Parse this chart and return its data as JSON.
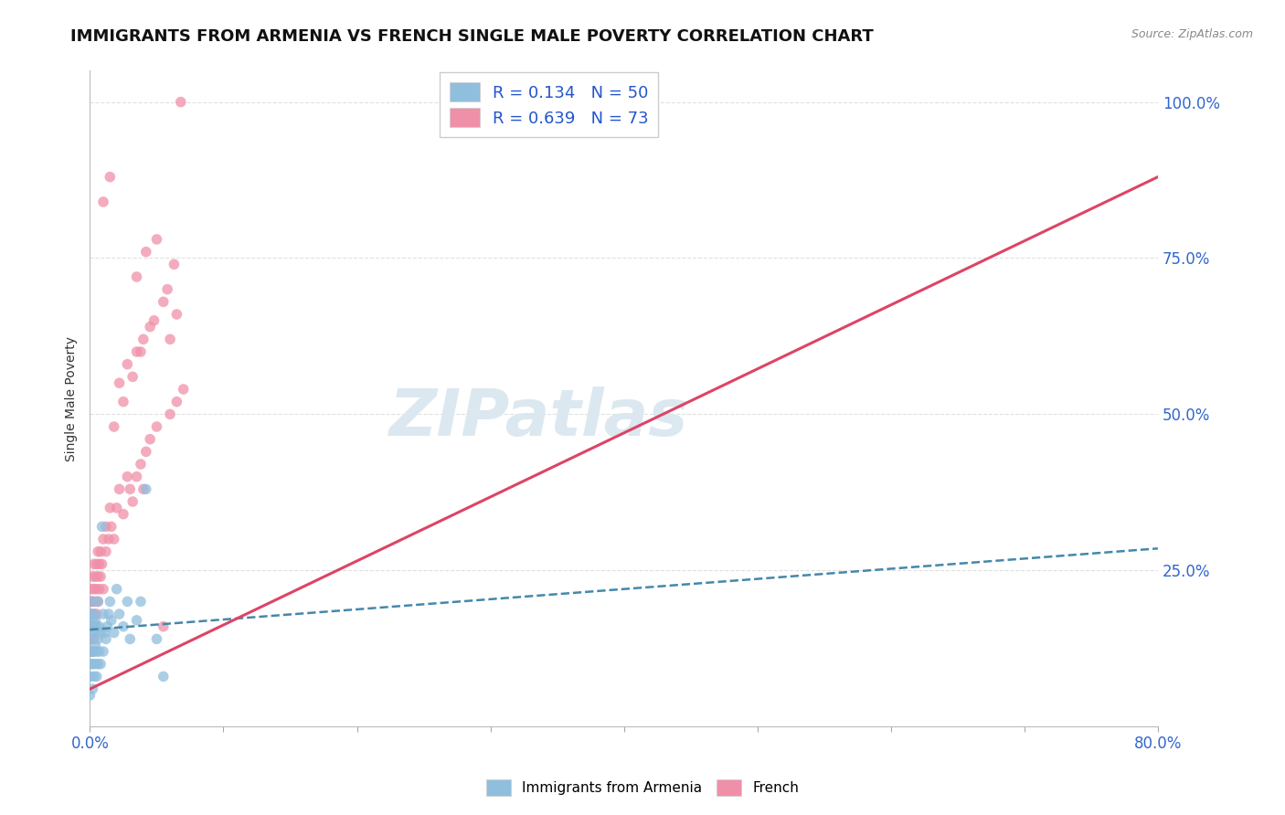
{
  "title": "IMMIGRANTS FROM ARMENIA VS FRENCH SINGLE MALE POVERTY CORRELATION CHART",
  "source": "Source: ZipAtlas.com",
  "ylabel": "Single Male Poverty",
  "legend_entries": [
    {
      "label": "R = 0.134   N = 50",
      "color": "#a8c8e8"
    },
    {
      "label": "R = 0.639   N = 73",
      "color": "#f4a8b8"
    }
  ],
  "blue_scatter_x": [
    0.0,
    0.0,
    0.001,
    0.001,
    0.001,
    0.001,
    0.001,
    0.002,
    0.002,
    0.002,
    0.002,
    0.002,
    0.002,
    0.003,
    0.003,
    0.003,
    0.003,
    0.004,
    0.004,
    0.004,
    0.005,
    0.005,
    0.005,
    0.006,
    0.006,
    0.006,
    0.007,
    0.007,
    0.008,
    0.008,
    0.009,
    0.01,
    0.01,
    0.011,
    0.012,
    0.013,
    0.014,
    0.015,
    0.016,
    0.018,
    0.02,
    0.022,
    0.025,
    0.028,
    0.03,
    0.035,
    0.038,
    0.042,
    0.05,
    0.055
  ],
  "blue_scatter_y": [
    0.05,
    0.08,
    0.1,
    0.12,
    0.14,
    0.16,
    0.18,
    0.06,
    0.1,
    0.12,
    0.15,
    0.17,
    0.2,
    0.08,
    0.12,
    0.15,
    0.18,
    0.1,
    0.13,
    0.17,
    0.08,
    0.12,
    0.16,
    0.1,
    0.14,
    0.2,
    0.12,
    0.16,
    0.1,
    0.15,
    0.32,
    0.12,
    0.18,
    0.15,
    0.14,
    0.16,
    0.18,
    0.2,
    0.17,
    0.15,
    0.22,
    0.18,
    0.16,
    0.2,
    0.14,
    0.17,
    0.2,
    0.38,
    0.14,
    0.08
  ],
  "pink_scatter_x": [
    0.0,
    0.0,
    0.001,
    0.001,
    0.001,
    0.001,
    0.002,
    0.002,
    0.002,
    0.002,
    0.003,
    0.003,
    0.003,
    0.003,
    0.004,
    0.004,
    0.004,
    0.005,
    0.005,
    0.005,
    0.006,
    0.006,
    0.006,
    0.007,
    0.007,
    0.008,
    0.008,
    0.009,
    0.01,
    0.01,
    0.012,
    0.012,
    0.014,
    0.015,
    0.016,
    0.018,
    0.02,
    0.022,
    0.025,
    0.028,
    0.03,
    0.032,
    0.035,
    0.038,
    0.04,
    0.042,
    0.045,
    0.05,
    0.055,
    0.06,
    0.065,
    0.07,
    0.022,
    0.028,
    0.035,
    0.04,
    0.048,
    0.055,
    0.06,
    0.065,
    0.018,
    0.025,
    0.032,
    0.038,
    0.045,
    0.035,
    0.042,
    0.05,
    0.058,
    0.063,
    0.01,
    0.015,
    0.068
  ],
  "pink_scatter_y": [
    0.12,
    0.16,
    0.14,
    0.18,
    0.2,
    0.22,
    0.12,
    0.16,
    0.2,
    0.24,
    0.14,
    0.18,
    0.22,
    0.26,
    0.16,
    0.2,
    0.24,
    0.18,
    0.22,
    0.26,
    0.2,
    0.24,
    0.28,
    0.22,
    0.26,
    0.24,
    0.28,
    0.26,
    0.22,
    0.3,
    0.28,
    0.32,
    0.3,
    0.35,
    0.32,
    0.3,
    0.35,
    0.38,
    0.34,
    0.4,
    0.38,
    0.36,
    0.4,
    0.42,
    0.38,
    0.44,
    0.46,
    0.48,
    0.16,
    0.5,
    0.52,
    0.54,
    0.55,
    0.58,
    0.6,
    0.62,
    0.65,
    0.68,
    0.62,
    0.66,
    0.48,
    0.52,
    0.56,
    0.6,
    0.64,
    0.72,
    0.76,
    0.78,
    0.7,
    0.74,
    0.84,
    0.88,
    1.0
  ],
  "blue_line_x": [
    0.0,
    0.8
  ],
  "blue_line_y": [
    0.155,
    0.285
  ],
  "pink_line_x": [
    0.0,
    0.8
  ],
  "pink_line_y": [
    0.06,
    0.88
  ],
  "xlim": [
    0.0,
    0.8
  ],
  "ylim": [
    0.0,
    1.05
  ],
  "scatter_size": 70,
  "blue_color": "#90bedd",
  "pink_color": "#f090a8",
  "blue_line_color": "#4488aa",
  "pink_line_color": "#dd4466",
  "background_color": "#ffffff",
  "grid_color": "#e0e0e0",
  "title_fontsize": 13,
  "watermark": "ZIPatlas",
  "watermark_color": "#dce8f0",
  "watermark_fontsize": 52,
  "right_ytick_labels": [
    "",
    "25.0%",
    "50.0%",
    "75.0%",
    "100.0%"
  ],
  "right_ytick_vals": [
    0.0,
    0.25,
    0.5,
    0.75,
    1.0
  ]
}
